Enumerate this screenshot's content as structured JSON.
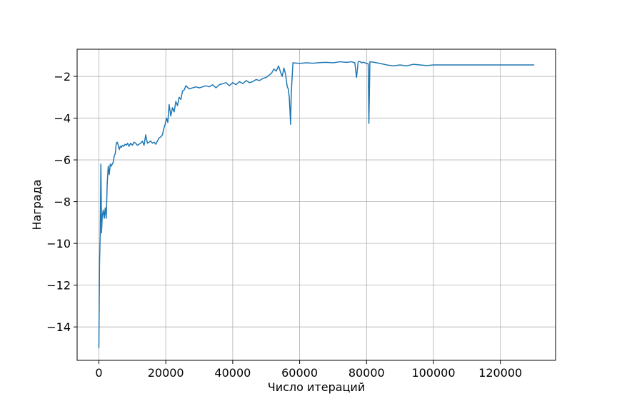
{
  "chart_data": {
    "type": "line",
    "title": "",
    "xlabel": "Число итераций",
    "ylabel": "Награда",
    "xlim": [
      -6500,
      136500
    ],
    "ylim": [
      -15.6,
      -0.7
    ],
    "xticks": [
      0,
      20000,
      40000,
      60000,
      80000,
      100000,
      120000
    ],
    "yticks": [
      -2,
      -4,
      -6,
      -8,
      -10,
      -12,
      -14
    ],
    "xtick_labels": [
      "0",
      "20000",
      "40000",
      "60000",
      "80000",
      "100000",
      "120000"
    ],
    "ytick_labels": [
      "−2",
      "−4",
      "−6",
      "−8",
      "−10",
      "−12",
      "−14"
    ],
    "grid": true,
    "legend": false,
    "colors": {
      "line": "#1f77b4",
      "grid": "#b0b0b0",
      "axes": "#000000"
    },
    "series": [
      {
        "x": [
          0,
          200,
          400,
          600,
          800,
          1000,
          1300,
          1600,
          1900,
          2200,
          2500,
          2800,
          3100,
          3400,
          3700,
          4000,
          4300,
          4600,
          4900,
          5200,
          5500,
          5800,
          6100,
          6400,
          6700,
          7000,
          7400,
          7800,
          8200,
          8600,
          9000,
          9500,
          10000,
          10500,
          11000,
          11500,
          12000,
          12500,
          13000,
          13500,
          14000,
          14500,
          15000,
          15500,
          16000,
          16500,
          17000,
          17500,
          18000,
          18500,
          19000,
          19400,
          19800,
          20200,
          20600,
          21000,
          21500,
          22000,
          22500,
          23000,
          23500,
          24000,
          24500,
          25000,
          25500,
          26000,
          27000,
          28000,
          29000,
          30000,
          31000,
          32000,
          33000,
          34000,
          35000,
          36000,
          37000,
          38000,
          39000,
          40000,
          41000,
          42000,
          43000,
          44000,
          45000,
          46000,
          47000,
          48000,
          49000,
          50000,
          50800,
          51600,
          52300,
          53000,
          53700,
          54300,
          54800,
          55300,
          55800,
          56300,
          56600,
          56900,
          57100,
          57300,
          57500,
          58000,
          60000,
          62000,
          64000,
          66000,
          68000,
          70000,
          72000,
          74000,
          75500,
          76500,
          77000,
          77500,
          78000,
          78500,
          79000,
          80000,
          80500,
          80700,
          81000,
          82000,
          84000,
          86000,
          88000,
          90000,
          92000,
          94000,
          96000,
          98000,
          100000,
          110000,
          120000,
          130000
        ],
        "values": [
          -15.0,
          -11.0,
          -9.5,
          -6.2,
          -9.5,
          -8.7,
          -8.4,
          -8.8,
          -8.3,
          -8.8,
          -7.1,
          -6.3,
          -6.7,
          -6.2,
          -6.3,
          -6.2,
          -6.1,
          -5.8,
          -5.7,
          -5.2,
          -5.15,
          -5.3,
          -5.5,
          -5.35,
          -5.4,
          -5.3,
          -5.35,
          -5.25,
          -5.3,
          -5.2,
          -5.35,
          -5.2,
          -5.3,
          -5.15,
          -5.2,
          -5.3,
          -5.25,
          -5.2,
          -5.1,
          -5.3,
          -4.8,
          -5.2,
          -5.15,
          -5.1,
          -5.2,
          -5.15,
          -5.25,
          -5.1,
          -4.95,
          -4.9,
          -4.8,
          -4.5,
          -4.3,
          -4.0,
          -4.2,
          -3.35,
          -3.9,
          -3.5,
          -3.7,
          -3.2,
          -3.4,
          -3.0,
          -3.1,
          -2.7,
          -2.65,
          -2.45,
          -2.6,
          -2.55,
          -2.5,
          -2.55,
          -2.5,
          -2.45,
          -2.5,
          -2.4,
          -2.55,
          -2.4,
          -2.35,
          -2.3,
          -2.45,
          -2.3,
          -2.4,
          -2.25,
          -2.35,
          -2.2,
          -2.3,
          -2.25,
          -2.15,
          -2.2,
          -2.1,
          -2.05,
          -1.95,
          -1.85,
          -1.65,
          -1.75,
          -1.5,
          -1.8,
          -2.0,
          -1.6,
          -1.9,
          -2.5,
          -2.6,
          -3.0,
          -3.6,
          -4.3,
          -2.8,
          -1.35,
          -1.38,
          -1.35,
          -1.37,
          -1.34,
          -1.33,
          -1.35,
          -1.3,
          -1.33,
          -1.3,
          -1.35,
          -2.05,
          -1.3,
          -1.28,
          -1.35,
          -1.32,
          -1.38,
          -1.4,
          -4.25,
          -1.3,
          -1.32,
          -1.38,
          -1.45,
          -1.5,
          -1.45,
          -1.5,
          -1.42,
          -1.45,
          -1.48,
          -1.45,
          -1.45,
          -1.45,
          -1.45
        ]
      }
    ]
  }
}
